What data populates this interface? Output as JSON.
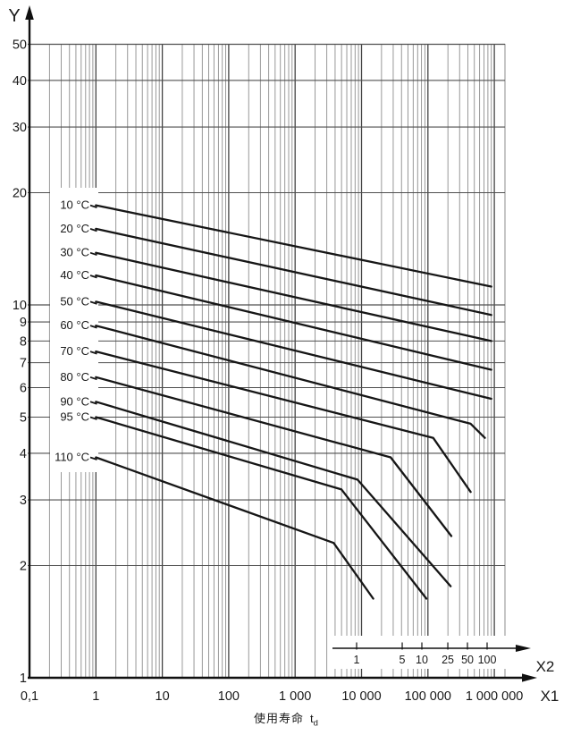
{
  "page": {
    "background": "#ffffff"
  },
  "chart_data": {
    "type": "line",
    "x_scale": "log",
    "y_scale": "log",
    "grid": "log-log minor gridlines on",
    "axis_y": {
      "label": "Y",
      "tick_labels": [
        "1",
        "2",
        "3",
        "4",
        "5",
        "6",
        "7",
        "8",
        "9",
        "10",
        "20",
        "30",
        "40",
        "50"
      ],
      "tick_values": [
        1,
        2,
        3,
        4,
        5,
        6,
        7,
        8,
        9,
        10,
        20,
        30,
        40,
        50
      ],
      "range": [
        1,
        50
      ]
    },
    "axis_x1": {
      "label": "X1",
      "tick_labels": [
        "0,1",
        "1",
        "10",
        "100",
        "1 000",
        "10 000",
        "100 000",
        "1 000 000"
      ],
      "tick_values": [
        0.1,
        1,
        10,
        100,
        1000,
        10000,
        100000,
        1000000
      ],
      "range": [
        0.1,
        1000000
      ]
    },
    "axis_x2": {
      "label": "X2",
      "tick_labels": [
        "1",
        "5",
        "10",
        "25",
        "50",
        "100"
      ],
      "tick_values": [
        1,
        5,
        10,
        25,
        50,
        100
      ]
    },
    "caption": {
      "text": "使用寿命",
      "symbol": "t",
      "subscript": "d"
    },
    "series": [
      {
        "name": "10 °C",
        "points": [
          [
            1,
            18.5
          ],
          [
            900000,
            11.2
          ]
        ]
      },
      {
        "name": "20 °C",
        "points": [
          [
            1,
            16.0
          ],
          [
            900000,
            9.4
          ]
        ]
      },
      {
        "name": "30 °C",
        "points": [
          [
            1,
            13.8
          ],
          [
            900000,
            8.0
          ]
        ]
      },
      {
        "name": "40 °C",
        "points": [
          [
            1,
            12.0
          ],
          [
            900000,
            6.7
          ]
        ]
      },
      {
        "name": "50 °C",
        "points": [
          [
            1,
            10.2
          ],
          [
            900000,
            5.6
          ]
        ]
      },
      {
        "name": "60 °C",
        "points": [
          [
            1,
            8.8
          ],
          [
            440000,
            4.8
          ],
          [
            720000,
            4.4
          ]
        ]
      },
      {
        "name": "70 °C",
        "points": [
          [
            1,
            7.5
          ],
          [
            120000,
            4.4
          ],
          [
            440000,
            3.15
          ]
        ]
      },
      {
        "name": "80 °C",
        "points": [
          [
            1,
            6.4
          ],
          [
            27500,
            3.9
          ],
          [
            225000,
            2.4
          ]
        ]
      },
      {
        "name": "90 °C",
        "points": [
          [
            1,
            5.5
          ],
          [
            8700,
            3.4
          ],
          [
            220000,
            1.76
          ]
        ]
      },
      {
        "name": "95 °C",
        "points": [
          [
            1,
            5.0
          ],
          [
            5000,
            3.2
          ],
          [
            95000,
            1.63
          ]
        ]
      },
      {
        "name": "110 °C",
        "points": [
          [
            1,
            3.9
          ],
          [
            3800,
            2.3
          ],
          [
            15000,
            1.63
          ]
        ]
      }
    ],
    "colors": {
      "curve": "#161616",
      "grid_major": "#434343",
      "grid_minor": "#8d8d8d",
      "grid_horizontal": "#4f4f4f",
      "axis": "#101010",
      "text": "#1a1a1a",
      "background": "#ffffff"
    }
  }
}
